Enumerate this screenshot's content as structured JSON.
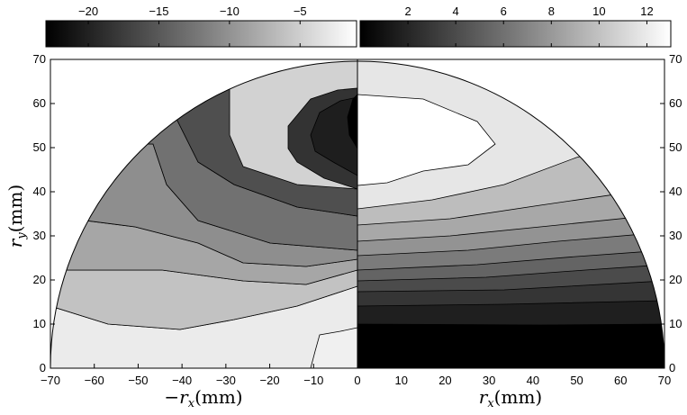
{
  "chart_data": {
    "type": "heatmap",
    "panels": [
      {
        "side": "left",
        "colormap": "gray",
        "colorbar_ticks": [
          "−20",
          "−15",
          "−10",
          "−5"
        ],
        "colorbar_range": [
          -23,
          -1
        ],
        "x_ticks": [
          "−70",
          "−60",
          "−50",
          "−40",
          "−30",
          "−20",
          "−10",
          "0"
        ],
        "xlabel": "−r_x(mm)",
        "ylabel": "r_y(mm)",
        "x_range": [
          -70,
          0
        ],
        "y_range": [
          0,
          70
        ]
      },
      {
        "side": "right",
        "colormap": "gray",
        "colorbar_ticks": [
          "2",
          "4",
          "6",
          "8",
          "10",
          "12"
        ],
        "colorbar_range": [
          0,
          13
        ],
        "x_ticks": [
          "0",
          "10",
          "20",
          "30",
          "40",
          "50",
          "60",
          "70"
        ],
        "xlabel": "r_x(mm)",
        "x_range": [
          0,
          70
        ],
        "y_range": [
          0,
          70
        ]
      }
    ],
    "y_ticks": [
      "0",
      "10",
      "20",
      "30",
      "40",
      "50",
      "60",
      "70"
    ],
    "domain": "semicircle, radius 70 mm"
  },
  "labels": {
    "xlabel_left_sign": "−",
    "xlabel_var": "r",
    "xlabel_sub": "x",
    "xlabel_unit": "(mm)",
    "ylabel_var": "r",
    "ylabel_sub": "y",
    "ylabel_unit": "(mm)"
  }
}
